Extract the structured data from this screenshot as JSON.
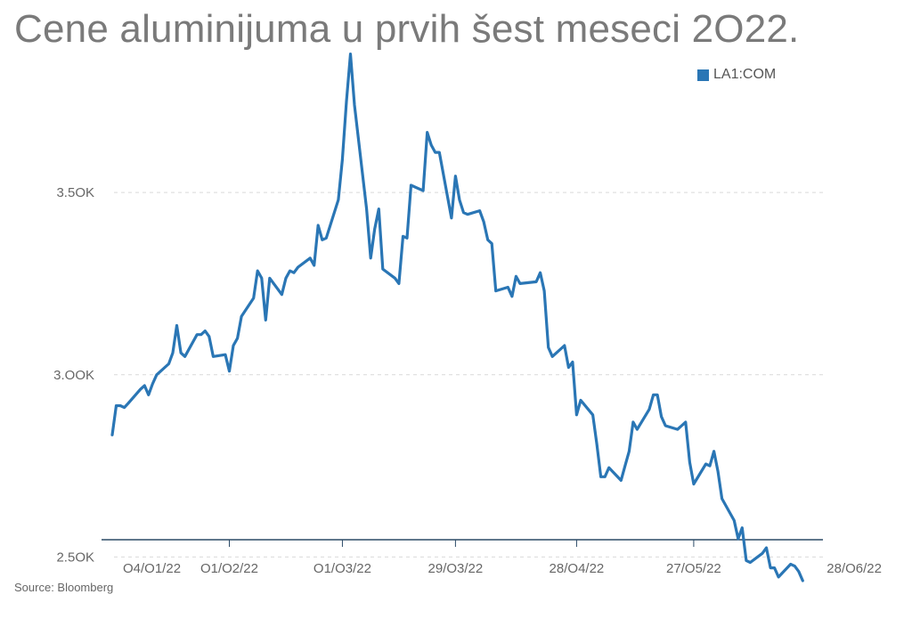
{
  "title": "Cene aluminijuma u prvih šest meseci 2O22.",
  "source": "Source: Bloomberg",
  "colors": {
    "series": "#2a76b5",
    "grid": "#d9d9d9",
    "axis": "#2b4a67",
    "text": "#666666"
  },
  "chart_data": {
    "type": "line",
    "title": "Cene aluminijuma u prvih šest meseci 2O22.",
    "xlabel": "",
    "ylabel": "",
    "legend_position": "top-right",
    "grid": true,
    "x_range": [
      "2022-01-03",
      "2022-06-28"
    ],
    "ylim": [
      2430,
      3950
    ],
    "y_ticks": [
      {
        "value": 2500,
        "label": "2.5OK"
      },
      {
        "value": 3000,
        "label": "3.OOK"
      },
      {
        "value": 3500,
        "label": "3.5OK"
      }
    ],
    "x_ticks": [
      {
        "date": "2022-01-04",
        "label": "O4/O1/22"
      },
      {
        "date": "2022-02-01",
        "label": "O1/O2/22"
      },
      {
        "date": "2022-03-01",
        "label": "O1/O3/22"
      },
      {
        "date": "2022-03-29",
        "label": "29/O3/22"
      },
      {
        "date": "2022-04-28",
        "label": "28/O4/22"
      },
      {
        "date": "2022-05-27",
        "label": "27/O5/22"
      },
      {
        "date": "2022-06-28",
        "label": "28/O6/22"
      }
    ],
    "series": [
      {
        "name": "LA1:COM",
        "points": [
          [
            "2022-01-03",
            2835
          ],
          [
            "2022-01-04",
            2915
          ],
          [
            "2022-01-05",
            2915
          ],
          [
            "2022-01-06",
            2910
          ],
          [
            "2022-01-07",
            2922
          ],
          [
            "2022-01-10",
            2960
          ],
          [
            "2022-01-11",
            2970
          ],
          [
            "2022-01-12",
            2945
          ],
          [
            "2022-01-13",
            2975
          ],
          [
            "2022-01-14",
            3000
          ],
          [
            "2022-01-17",
            3030
          ],
          [
            "2022-01-18",
            3060
          ],
          [
            "2022-01-19",
            3135
          ],
          [
            "2022-01-20",
            3060
          ],
          [
            "2022-01-21",
            3050
          ],
          [
            "2022-01-24",
            3110
          ],
          [
            "2022-01-25",
            3110
          ],
          [
            "2022-01-26",
            3120
          ],
          [
            "2022-01-27",
            3105
          ],
          [
            "2022-01-28",
            3050
          ],
          [
            "2022-01-31",
            3055
          ],
          [
            "2022-02-01",
            3010
          ],
          [
            "2022-02-02",
            3080
          ],
          [
            "2022-02-03",
            3100
          ],
          [
            "2022-02-04",
            3160
          ],
          [
            "2022-02-07",
            3210
          ],
          [
            "2022-02-08",
            3285
          ],
          [
            "2022-02-09",
            3265
          ],
          [
            "2022-02-10",
            3150
          ],
          [
            "2022-02-11",
            3265
          ],
          [
            "2022-02-14",
            3220
          ],
          [
            "2022-02-15",
            3265
          ],
          [
            "2022-02-16",
            3285
          ],
          [
            "2022-02-17",
            3280
          ],
          [
            "2022-02-18",
            3295
          ],
          [
            "2022-02-21",
            3320
          ],
          [
            "2022-02-22",
            3300
          ],
          [
            "2022-02-23",
            3410
          ],
          [
            "2022-02-24",
            3370
          ],
          [
            "2022-02-25",
            3375
          ],
          [
            "2022-02-28",
            3480
          ],
          [
            "2022-03-01",
            3590
          ],
          [
            "2022-03-02",
            3750
          ],
          [
            "2022-03-03",
            3880
          ],
          [
            "2022-03-04",
            3740
          ],
          [
            "2022-03-07",
            3455
          ],
          [
            "2022-03-08",
            3320
          ],
          [
            "2022-03-09",
            3400
          ],
          [
            "2022-03-10",
            3455
          ],
          [
            "2022-03-11",
            3290
          ],
          [
            "2022-03-14",
            3265
          ],
          [
            "2022-03-15",
            3250
          ],
          [
            "2022-03-16",
            3380
          ],
          [
            "2022-03-17",
            3375
          ],
          [
            "2022-03-18",
            3520
          ],
          [
            "2022-03-21",
            3505
          ],
          [
            "2022-03-22",
            3665
          ],
          [
            "2022-03-23",
            3630
          ],
          [
            "2022-03-24",
            3610
          ],
          [
            "2022-03-25",
            3610
          ],
          [
            "2022-03-28",
            3430
          ],
          [
            "2022-03-29",
            3545
          ],
          [
            "2022-03-30",
            3480
          ],
          [
            "2022-03-31",
            3445
          ],
          [
            "2022-04-01",
            3440
          ],
          [
            "2022-04-04",
            3450
          ],
          [
            "2022-04-05",
            3420
          ],
          [
            "2022-04-06",
            3370
          ],
          [
            "2022-04-07",
            3360
          ],
          [
            "2022-04-08",
            3230
          ],
          [
            "2022-04-11",
            3240
          ],
          [
            "2022-04-12",
            3215
          ],
          [
            "2022-04-13",
            3270
          ],
          [
            "2022-04-14",
            3250
          ],
          [
            "2022-04-18",
            3255
          ],
          [
            "2022-04-19",
            3280
          ],
          [
            "2022-04-20",
            3230
          ],
          [
            "2022-04-21",
            3075
          ],
          [
            "2022-04-22",
            3050
          ],
          [
            "2022-04-25",
            3080
          ],
          [
            "2022-04-26",
            3020
          ],
          [
            "2022-04-27",
            3035
          ],
          [
            "2022-04-28",
            2890
          ],
          [
            "2022-04-29",
            2930
          ],
          [
            "2022-05-02",
            2890
          ],
          [
            "2022-05-03",
            2810
          ],
          [
            "2022-05-04",
            2720
          ],
          [
            "2022-05-05",
            2720
          ],
          [
            "2022-05-06",
            2745
          ],
          [
            "2022-05-09",
            2710
          ],
          [
            "2022-05-10",
            2750
          ],
          [
            "2022-05-11",
            2790
          ],
          [
            "2022-05-12",
            2870
          ],
          [
            "2022-05-13",
            2850
          ],
          [
            "2022-05-16",
            2905
          ],
          [
            "2022-05-17",
            2945
          ],
          [
            "2022-05-18",
            2945
          ],
          [
            "2022-05-19",
            2885
          ],
          [
            "2022-05-20",
            2860
          ],
          [
            "2022-05-23",
            2850
          ],
          [
            "2022-05-24",
            2860
          ],
          [
            "2022-05-25",
            2870
          ],
          [
            "2022-05-26",
            2760
          ],
          [
            "2022-05-27",
            2700
          ],
          [
            "2022-05-30",
            2755
          ],
          [
            "2022-05-31",
            2750
          ],
          [
            "2022-06-01",
            2790
          ],
          [
            "2022-06-02",
            2735
          ],
          [
            "2022-06-03",
            2660
          ],
          [
            "2022-06-06",
            2600
          ],
          [
            "2022-06-07",
            2550
          ],
          [
            "2022-06-08",
            2580
          ],
          [
            "2022-06-09",
            2490
          ],
          [
            "2022-06-10",
            2485
          ],
          [
            "2022-06-13",
            2510
          ],
          [
            "2022-06-14",
            2525
          ],
          [
            "2022-06-15",
            2470
          ],
          [
            "2022-06-16",
            2470
          ],
          [
            "2022-06-17",
            2445
          ],
          [
            "2022-06-20",
            2480
          ],
          [
            "2022-06-21",
            2475
          ],
          [
            "2022-06-22",
            2460
          ],
          [
            "2022-06-23",
            2435
          ]
        ]
      }
    ]
  }
}
